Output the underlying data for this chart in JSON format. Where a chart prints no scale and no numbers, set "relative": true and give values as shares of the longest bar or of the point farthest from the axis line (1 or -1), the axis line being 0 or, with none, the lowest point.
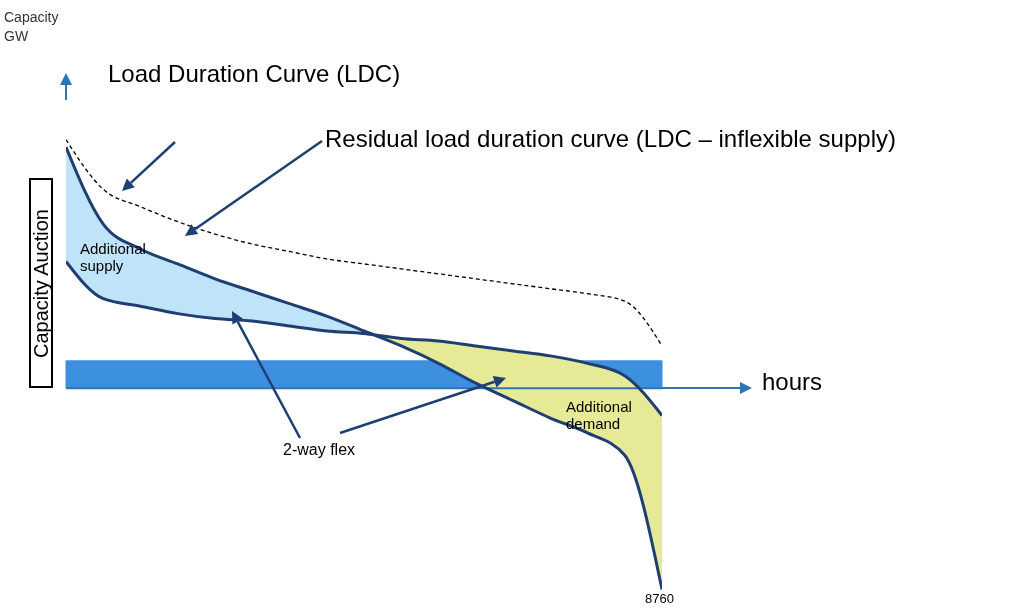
{
  "chart_data": {
    "type": "line",
    "relative": true,
    "xlabel": "hours",
    "categories": [
      null,
      null,
      null,
      null,
      null,
      null,
      null,
      null,
      null,
      null,
      null,
      null,
      null,
      null,
      null,
      null,
      null
    ],
    "series": [
      {
        "color": "#000000",
        "line_style": "dashed",
        "values": [
          1,
          0.8,
          0.73,
          0.67,
          0.62,
          0.58,
          0.55,
          0.52,
          0.5,
          0.48,
          0.46,
          0.44,
          0.42,
          0.4,
          0.38,
          0.35,
          0.17
        ]
      },
      {
        "color": "#1f3f73",
        "line_style": "solid",
        "values": [
          0.97,
          0.66,
          0.56,
          0.5,
          0.44,
          0.39,
          0.34,
          0.29,
          0.23,
          0.17,
          0.1,
          0.02,
          -0.05,
          -0.12,
          -0.18,
          -0.27,
          -0.81
        ],
        "lower": [
          0.51,
          0.36,
          0.33,
          0.3,
          0.28,
          0.27,
          0.25,
          0.23,
          0.22,
          0.2,
          0.19,
          0.17,
          0.15,
          0.13,
          0.1,
          0.05,
          -0.11
        ],
        "upper": [
          0.97,
          0.66,
          0.56,
          0.5,
          0.44,
          0.39,
          0.34,
          0.29,
          0.23,
          0.17,
          0.1,
          0.02,
          -0.05,
          -0.12,
          -0.18,
          -0.27,
          -0.81
        ]
      },
      {
        "color": "#1f3f73",
        "line_style": "solid",
        "values": [
          0.51,
          0.36,
          0.33,
          0.3,
          0.28,
          0.27,
          0.25,
          0.23,
          0.22,
          0.2,
          0.19,
          0.17,
          0.15,
          0.13,
          0.1,
          0.05,
          -0.11
        ]
      }
    ],
    "bands": [
      {
        "axis": "y",
        "from": 0,
        "to": 0.11,
        "color": "#3d8fe0"
      }
    ],
    "ref_lines": [
      {
        "axis": "y",
        "value": 0,
        "color": "#2e75b6"
      }
    ],
    "annotations": [
      "Load Duration Curve (LDC)",
      "Residual load duration curve (LDC – inflexible supply)",
      "Additional supply",
      "Additional demand",
      "2-way flex",
      "Capacity Auction",
      "8760",
      "Capacity GW"
    ],
    "marker": "none",
    "grid": false,
    "legend": false
  }
}
